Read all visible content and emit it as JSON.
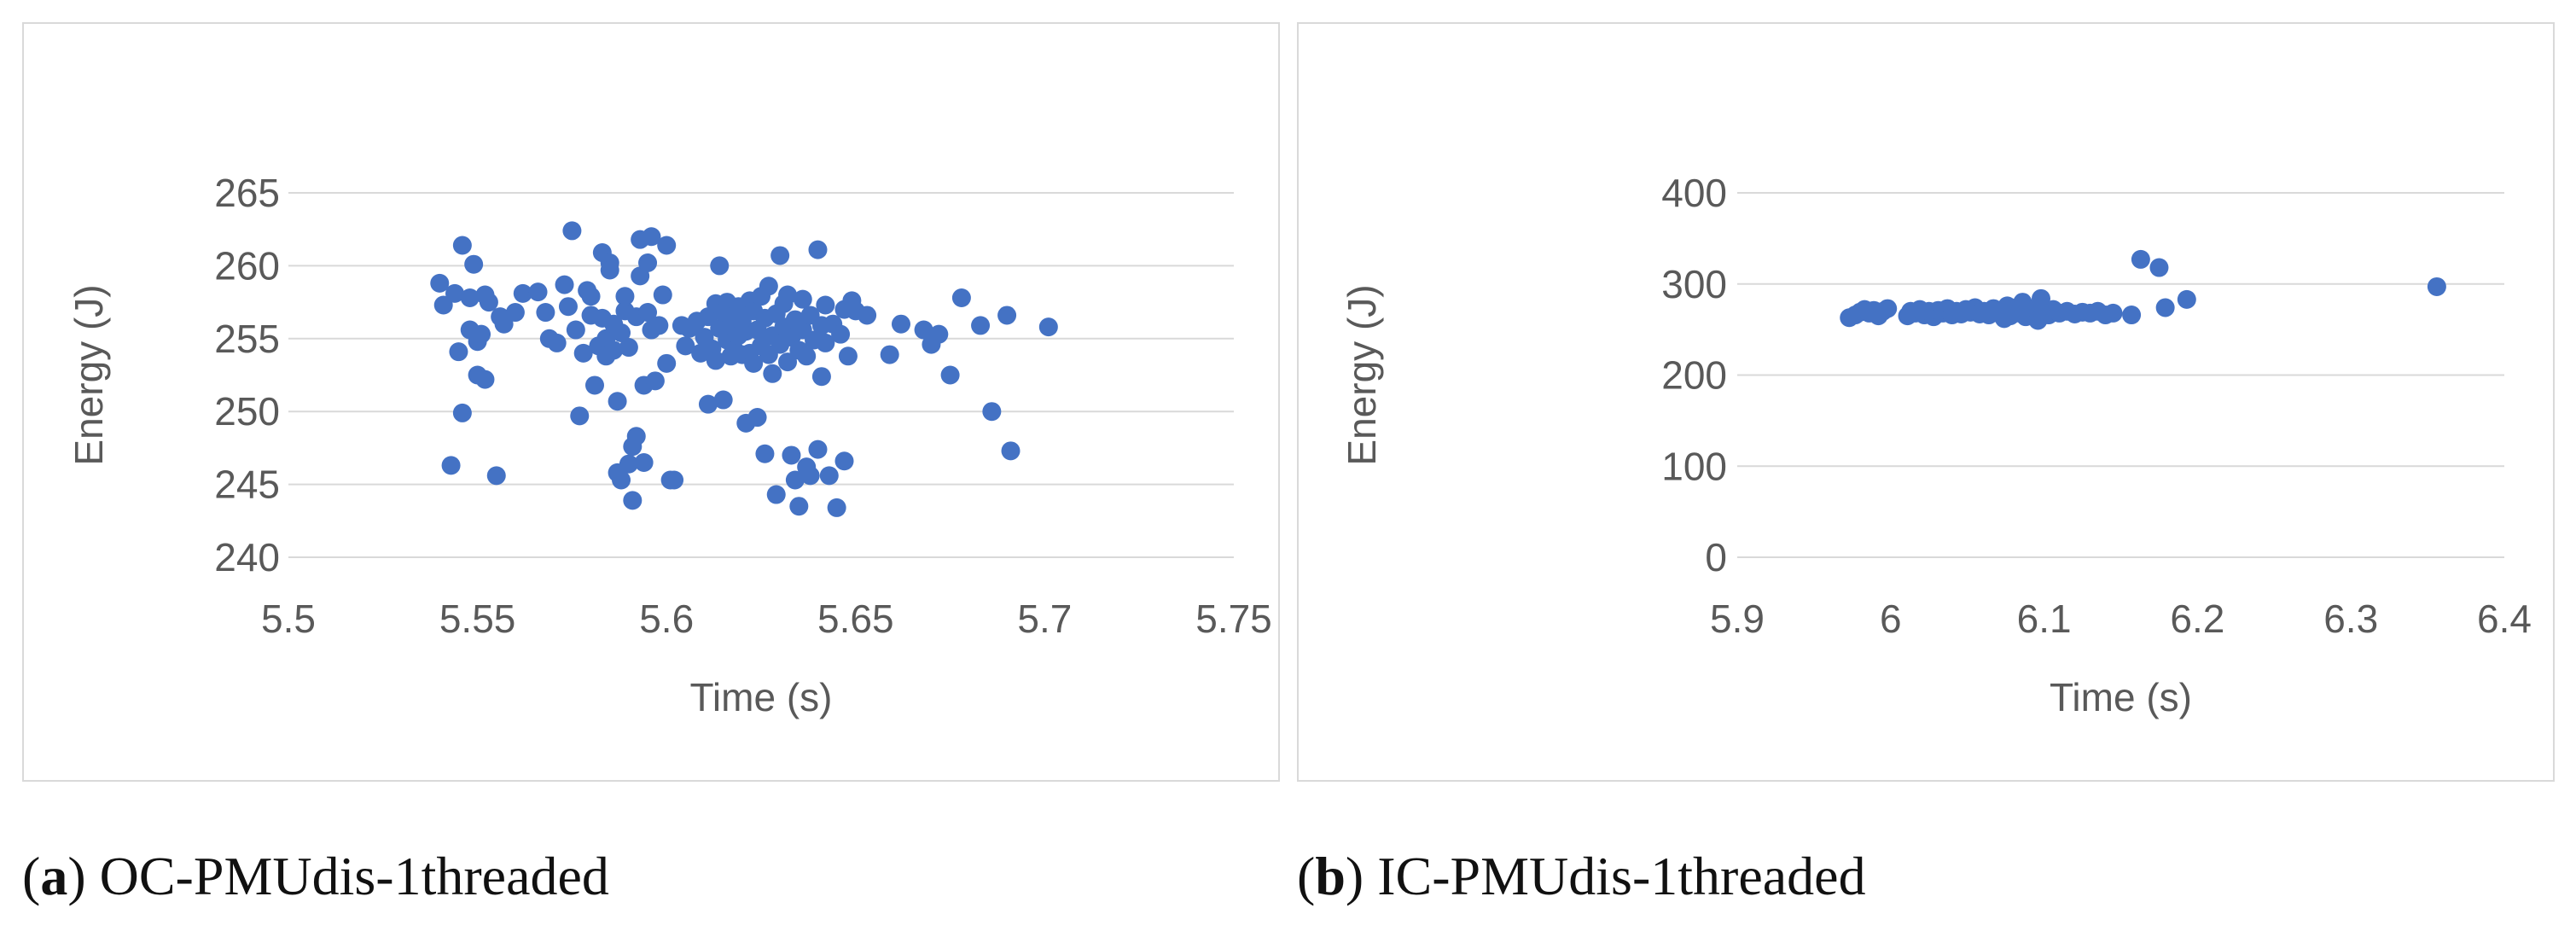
{
  "captions": [
    {
      "letter": "a",
      "text": "OC-PMUdis-1threaded"
    },
    {
      "letter": "b",
      "text": "IC-PMUdis-1threaded"
    }
  ],
  "chart_data": [
    {
      "type": "scatter",
      "title": "",
      "xlabel": "Time (s)",
      "ylabel": "Energy (J)",
      "xlim": [
        5.5,
        5.75
      ],
      "ylim": [
        240,
        265
      ],
      "xticks": [
        "5.5",
        "5.55",
        "5.6",
        "5.65",
        "5.7",
        "5.75"
      ],
      "yticks": [
        "240",
        "245",
        "250",
        "255",
        "260",
        "265"
      ],
      "grid": "horizontal",
      "color": "#4472c4",
      "points": [
        [
          5.54,
          258.8
        ],
        [
          5.541,
          257.3
        ],
        [
          5.543,
          246.3
        ],
        [
          5.544,
          258.1
        ],
        [
          5.545,
          254.1
        ],
        [
          5.546,
          261.4
        ],
        [
          5.546,
          249.9
        ],
        [
          5.548,
          257.8
        ],
        [
          5.548,
          255.6
        ],
        [
          5.549,
          260.1
        ],
        [
          5.55,
          254.8
        ],
        [
          5.55,
          252.5
        ],
        [
          5.551,
          255.3
        ],
        [
          5.552,
          252.2
        ],
        [
          5.552,
          258.0
        ],
        [
          5.553,
          257.5
        ],
        [
          5.555,
          245.6
        ],
        [
          5.556,
          256.5
        ],
        [
          5.557,
          256.0
        ],
        [
          5.56,
          256.8
        ],
        [
          5.562,
          258.1
        ],
        [
          5.566,
          258.2
        ],
        [
          5.568,
          256.8
        ],
        [
          5.569,
          255.0
        ],
        [
          5.571,
          254.7
        ],
        [
          5.573,
          258.7
        ],
        [
          5.574,
          257.2
        ],
        [
          5.575,
          262.4
        ],
        [
          5.576,
          255.6
        ],
        [
          5.577,
          249.7
        ],
        [
          5.578,
          254.0
        ],
        [
          5.579,
          258.3
        ],
        [
          5.58,
          256.6
        ],
        [
          5.58,
          257.9
        ],
        [
          5.581,
          251.8
        ],
        [
          5.582,
          254.5
        ],
        [
          5.583,
          260.9
        ],
        [
          5.583,
          256.4
        ],
        [
          5.584,
          255.0
        ],
        [
          5.584,
          253.8
        ],
        [
          5.585,
          260.2
        ],
        [
          5.585,
          259.7
        ],
        [
          5.586,
          256.0
        ],
        [
          5.586,
          254.2
        ],
        [
          5.587,
          250.7
        ],
        [
          5.587,
          245.8
        ],
        [
          5.588,
          245.3
        ],
        [
          5.588,
          255.4
        ],
        [
          5.589,
          256.9
        ],
        [
          5.589,
          257.9
        ],
        [
          5.59,
          254.4
        ],
        [
          5.59,
          246.4
        ],
        [
          5.591,
          247.6
        ],
        [
          5.591,
          243.9
        ],
        [
          5.592,
          248.3
        ],
        [
          5.592,
          256.5
        ],
        [
          5.593,
          261.8
        ],
        [
          5.593,
          259.3
        ],
        [
          5.594,
          251.8
        ],
        [
          5.594,
          246.5
        ],
        [
          5.595,
          256.8
        ],
        [
          5.595,
          260.2
        ],
        [
          5.596,
          262.0
        ],
        [
          5.596,
          255.6
        ],
        [
          5.597,
          252.1
        ],
        [
          5.598,
          255.9
        ],
        [
          5.599,
          258.0
        ],
        [
          5.6,
          253.3
        ],
        [
          5.6,
          261.4
        ],
        [
          5.601,
          245.3
        ],
        [
          5.602,
          245.3
        ],
        [
          5.604,
          255.9
        ],
        [
          5.605,
          254.5
        ],
        [
          5.606,
          255.7
        ],
        [
          5.608,
          256.2
        ],
        [
          5.609,
          254.0
        ],
        [
          5.61,
          255.1
        ],
        [
          5.611,
          256.5
        ],
        [
          5.611,
          250.5
        ],
        [
          5.612,
          254.3
        ],
        [
          5.613,
          257.4
        ],
        [
          5.613,
          253.5
        ],
        [
          5.614,
          255.7
        ],
        [
          5.614,
          260.0
        ],
        [
          5.615,
          256.8
        ],
        [
          5.615,
          250.8
        ],
        [
          5.616,
          254.9
        ],
        [
          5.616,
          257.5
        ],
        [
          5.617,
          253.8
        ],
        [
          5.617,
          255.9
        ],
        [
          5.618,
          254.2
        ],
        [
          5.618,
          256.6
        ],
        [
          5.619,
          255.2
        ],
        [
          5.619,
          257.2
        ],
        [
          5.62,
          253.9
        ],
        [
          5.62,
          256.2
        ],
        [
          5.621,
          249.2
        ],
        [
          5.621,
          255.5
        ],
        [
          5.622,
          254.0
        ],
        [
          5.622,
          257.6
        ],
        [
          5.623,
          256.9
        ],
        [
          5.623,
          253.3
        ],
        [
          5.624,
          255.6
        ],
        [
          5.624,
          249.6
        ],
        [
          5.625,
          254.5
        ],
        [
          5.625,
          257.9
        ],
        [
          5.626,
          256.4
        ],
        [
          5.626,
          247.1
        ],
        [
          5.627,
          253.9
        ],
        [
          5.627,
          258.6
        ],
        [
          5.628,
          255.2
        ],
        [
          5.628,
          252.6
        ],
        [
          5.629,
          256.7
        ],
        [
          5.629,
          244.3
        ],
        [
          5.63,
          254.6
        ],
        [
          5.63,
          260.7
        ],
        [
          5.631,
          255.8
        ],
        [
          5.631,
          257.4
        ],
        [
          5.632,
          253.4
        ],
        [
          5.632,
          258.0
        ],
        [
          5.633,
          247.0
        ],
        [
          5.633,
          255.1
        ],
        [
          5.634,
          256.3
        ],
        [
          5.634,
          245.3
        ],
        [
          5.635,
          254.2
        ],
        [
          5.635,
          243.5
        ],
        [
          5.636,
          257.7
        ],
        [
          5.636,
          255.6
        ],
        [
          5.637,
          246.2
        ],
        [
          5.637,
          253.8
        ],
        [
          5.638,
          256.6
        ],
        [
          5.638,
          245.6
        ],
        [
          5.639,
          254.9
        ],
        [
          5.64,
          247.4
        ],
        [
          5.64,
          261.1
        ],
        [
          5.641,
          255.9
        ],
        [
          5.641,
          252.4
        ],
        [
          5.642,
          254.7
        ],
        [
          5.642,
          257.3
        ],
        [
          5.643,
          245.6
        ],
        [
          5.644,
          256.0
        ],
        [
          5.645,
          243.4
        ],
        [
          5.646,
          255.3
        ],
        [
          5.647,
          246.6
        ],
        [
          5.647,
          257.0
        ],
        [
          5.648,
          253.8
        ],
        [
          5.649,
          257.6
        ],
        [
          5.65,
          256.9
        ],
        [
          5.653,
          256.6
        ],
        [
          5.659,
          253.9
        ],
        [
          5.662,
          256.0
        ],
        [
          5.668,
          255.6
        ],
        [
          5.67,
          254.6
        ],
        [
          5.672,
          255.3
        ],
        [
          5.675,
          252.5
        ],
        [
          5.678,
          257.8
        ],
        [
          5.683,
          255.9
        ],
        [
          5.686,
          250.0
        ],
        [
          5.69,
          256.6
        ],
        [
          5.691,
          247.3
        ],
        [
          5.701,
          255.8
        ]
      ]
    },
    {
      "type": "scatter",
      "title": "",
      "xlabel": "Time (s)",
      "ylabel": "Energy (J)",
      "xlim": [
        5.9,
        6.4
      ],
      "ylim": [
        0,
        400
      ],
      "xticks": [
        "5.9",
        "6",
        "6.1",
        "6.2",
        "6.3",
        "6.4"
      ],
      "yticks": [
        "0",
        "100",
        "200",
        "300",
        "400"
      ],
      "grid": "horizontal",
      "color": "#4472c4",
      "points": [
        [
          5.973,
          263
        ],
        [
          5.977,
          266
        ],
        [
          5.98,
          269
        ],
        [
          5.983,
          272
        ],
        [
          5.986,
          268
        ],
        [
          5.989,
          271
        ],
        [
          5.992,
          265
        ],
        [
          5.995,
          270
        ],
        [
          5.998,
          273
        ],
        [
          6.011,
          265
        ],
        [
          6.013,
          270
        ],
        [
          6.016,
          268
        ],
        [
          6.019,
          272
        ],
        [
          6.022,
          266
        ],
        [
          6.025,
          270
        ],
        [
          6.028,
          264
        ],
        [
          6.031,
          271
        ],
        [
          6.034,
          268
        ],
        [
          6.037,
          273
        ],
        [
          6.04,
          266
        ],
        [
          6.043,
          270
        ],
        [
          6.046,
          267
        ],
        [
          6.049,
          272
        ],
        [
          6.052,
          269
        ],
        [
          6.055,
          274
        ],
        [
          6.058,
          267
        ],
        [
          6.061,
          270
        ],
        [
          6.064,
          266
        ],
        [
          6.067,
          273
        ],
        [
          6.07,
          268
        ],
        [
          6.072,
          271
        ],
        [
          6.074,
          262
        ],
        [
          6.076,
          276
        ],
        [
          6.078,
          265
        ],
        [
          6.08,
          270
        ],
        [
          6.082,
          274
        ],
        [
          6.084,
          268
        ],
        [
          6.086,
          280
        ],
        [
          6.088,
          264
        ],
        [
          6.09,
          271
        ],
        [
          6.092,
          267
        ],
        [
          6.094,
          273
        ],
        [
          6.096,
          260
        ],
        [
          6.098,
          284
        ],
        [
          6.1,
          270
        ],
        [
          6.103,
          266
        ],
        [
          6.106,
          272
        ],
        [
          6.11,
          268
        ],
        [
          6.115,
          270
        ],
        [
          6.12,
          267
        ],
        [
          6.125,
          269
        ],
        [
          6.13,
          268
        ],
        [
          6.135,
          270
        ],
        [
          6.14,
          266
        ],
        [
          6.145,
          268
        ],
        [
          6.157,
          266
        ],
        [
          6.163,
          327
        ],
        [
          6.175,
          318
        ],
        [
          6.179,
          274
        ],
        [
          6.193,
          283
        ],
        [
          6.356,
          297
        ]
      ]
    }
  ]
}
